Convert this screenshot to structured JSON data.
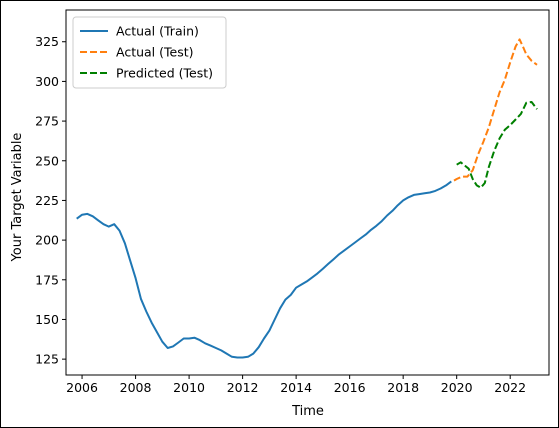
{
  "chart_data": {
    "type": "line",
    "title": "",
    "xlabel": "Time",
    "ylabel": "Your Target Variable",
    "xlim": [
      2005.4,
      2023.45
    ],
    "ylim": [
      115,
      345
    ],
    "x_ticks": [
      2006,
      2008,
      2010,
      2012,
      2014,
      2016,
      2018,
      2020,
      2022
    ],
    "y_ticks": [
      125,
      150,
      175,
      200,
      225,
      250,
      275,
      300,
      325
    ],
    "grid": false,
    "legend_position": "top-left",
    "series": [
      {
        "name": "Actual (Train)",
        "color": "#1f77b4",
        "style": "solid",
        "points": [
          [
            2005.8,
            213.5
          ],
          [
            2006.0,
            216.0
          ],
          [
            2006.2,
            216.5
          ],
          [
            2006.4,
            215.0
          ],
          [
            2006.6,
            212.5
          ],
          [
            2006.8,
            210.0
          ],
          [
            2007.0,
            208.5
          ],
          [
            2007.2,
            210.0
          ],
          [
            2007.4,
            206.0
          ],
          [
            2007.6,
            198.0
          ],
          [
            2007.8,
            187.0
          ],
          [
            2008.0,
            176.0
          ],
          [
            2008.2,
            163.0
          ],
          [
            2008.4,
            155.0
          ],
          [
            2008.6,
            148.0
          ],
          [
            2008.8,
            142.0
          ],
          [
            2009.0,
            136.0
          ],
          [
            2009.2,
            132.0
          ],
          [
            2009.4,
            133.0
          ],
          [
            2009.6,
            135.5
          ],
          [
            2009.8,
            138.0
          ],
          [
            2010.0,
            138.0
          ],
          [
            2010.2,
            138.5
          ],
          [
            2010.4,
            137.0
          ],
          [
            2010.6,
            135.0
          ],
          [
            2010.8,
            133.5
          ],
          [
            2011.0,
            132.0
          ],
          [
            2011.2,
            130.5
          ],
          [
            2011.4,
            128.5
          ],
          [
            2011.6,
            126.5
          ],
          [
            2011.8,
            126.0
          ],
          [
            2012.0,
            126.0
          ],
          [
            2012.2,
            126.5
          ],
          [
            2012.4,
            128.5
          ],
          [
            2012.6,
            132.5
          ],
          [
            2012.8,
            138.0
          ],
          [
            2013.0,
            143.0
          ],
          [
            2013.2,
            150.0
          ],
          [
            2013.4,
            157.0
          ],
          [
            2013.6,
            162.5
          ],
          [
            2013.8,
            165.5
          ],
          [
            2014.0,
            170.0
          ],
          [
            2014.2,
            172.0
          ],
          [
            2014.4,
            174.0
          ],
          [
            2014.6,
            176.5
          ],
          [
            2014.8,
            179.0
          ],
          [
            2015.0,
            182.0
          ],
          [
            2015.2,
            185.0
          ],
          [
            2015.4,
            188.0
          ],
          [
            2015.6,
            191.0
          ],
          [
            2015.8,
            193.5
          ],
          [
            2016.0,
            196.0
          ],
          [
            2016.2,
            198.5
          ],
          [
            2016.4,
            201.0
          ],
          [
            2016.6,
            203.5
          ],
          [
            2016.8,
            206.5
          ],
          [
            2017.0,
            209.0
          ],
          [
            2017.2,
            212.0
          ],
          [
            2017.4,
            215.5
          ],
          [
            2017.6,
            218.5
          ],
          [
            2017.8,
            222.0
          ],
          [
            2018.0,
            225.0
          ],
          [
            2018.2,
            227.0
          ],
          [
            2018.4,
            228.5
          ],
          [
            2018.6,
            229.0
          ],
          [
            2018.8,
            229.5
          ],
          [
            2019.0,
            230.0
          ],
          [
            2019.2,
            231.0
          ],
          [
            2019.4,
            232.5
          ],
          [
            2019.6,
            234.5
          ],
          [
            2019.8,
            237.0
          ]
        ]
      },
      {
        "name": "Actual (Test)",
        "color": "#ff7f0e",
        "style": "dashed",
        "points": [
          [
            2019.9,
            237.5
          ],
          [
            2020.0,
            238.5
          ],
          [
            2020.2,
            240.0
          ],
          [
            2020.4,
            240.0
          ],
          [
            2020.6,
            244.0
          ],
          [
            2020.8,
            254.0
          ],
          [
            2021.0,
            262.0
          ],
          [
            2021.2,
            271.0
          ],
          [
            2021.4,
            282.0
          ],
          [
            2021.6,
            293.0
          ],
          [
            2021.8,
            301.0
          ],
          [
            2022.0,
            312.0
          ],
          [
            2022.2,
            322.0
          ],
          [
            2022.35,
            326.5
          ],
          [
            2022.5,
            321.0
          ],
          [
            2022.6,
            317.0
          ],
          [
            2022.8,
            313.0
          ],
          [
            2023.0,
            310.5
          ]
        ]
      },
      {
        "name": "Predicted (Test)",
        "color": "#008000",
        "style": "dashed",
        "points": [
          [
            2020.0,
            247.5
          ],
          [
            2020.15,
            249.0
          ],
          [
            2020.3,
            247.0
          ],
          [
            2020.45,
            245.0
          ],
          [
            2020.6,
            238.5
          ],
          [
            2020.75,
            234.5
          ],
          [
            2020.9,
            233.0
          ],
          [
            2021.05,
            236.0
          ],
          [
            2021.2,
            246.0
          ],
          [
            2021.4,
            256.0
          ],
          [
            2021.6,
            264.0
          ],
          [
            2021.8,
            269.5
          ],
          [
            2022.0,
            272.5
          ],
          [
            2022.2,
            276.0
          ],
          [
            2022.4,
            279.5
          ],
          [
            2022.6,
            286.5
          ],
          [
            2022.8,
            287.0
          ],
          [
            2023.0,
            282.5
          ]
        ]
      }
    ]
  }
}
